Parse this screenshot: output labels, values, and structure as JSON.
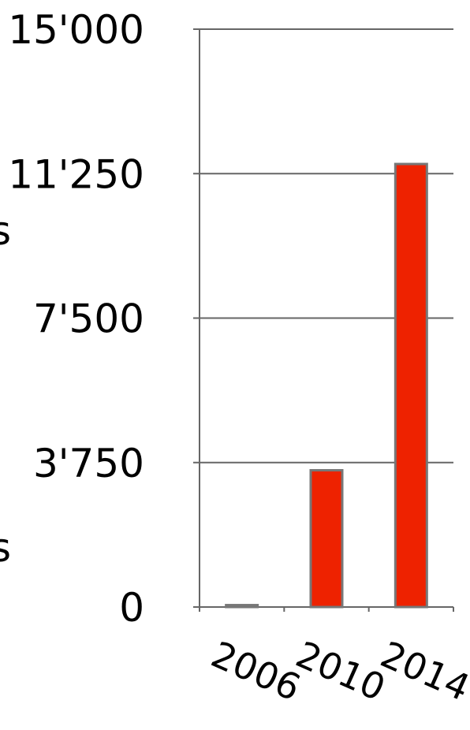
{
  "edge_glyphs": [
    "s",
    "s"
  ],
  "chart_data": {
    "type": "bar",
    "categories": [
      "2006",
      "2010",
      "2014"
    ],
    "values": [
      50,
      3550,
      11500
    ],
    "ylim": [
      0,
      15000
    ],
    "yticks": [
      "0",
      "3'750",
      "7'500",
      "11'250",
      "15'000"
    ],
    "ytick_values": [
      0,
      3750,
      7500,
      11250,
      15000
    ],
    "grid": true,
    "bar_color": "#ee2200",
    "bar_edge_color": "#777777",
    "axis_color": "#666666",
    "title": "",
    "xlabel": "",
    "ylabel": ""
  }
}
